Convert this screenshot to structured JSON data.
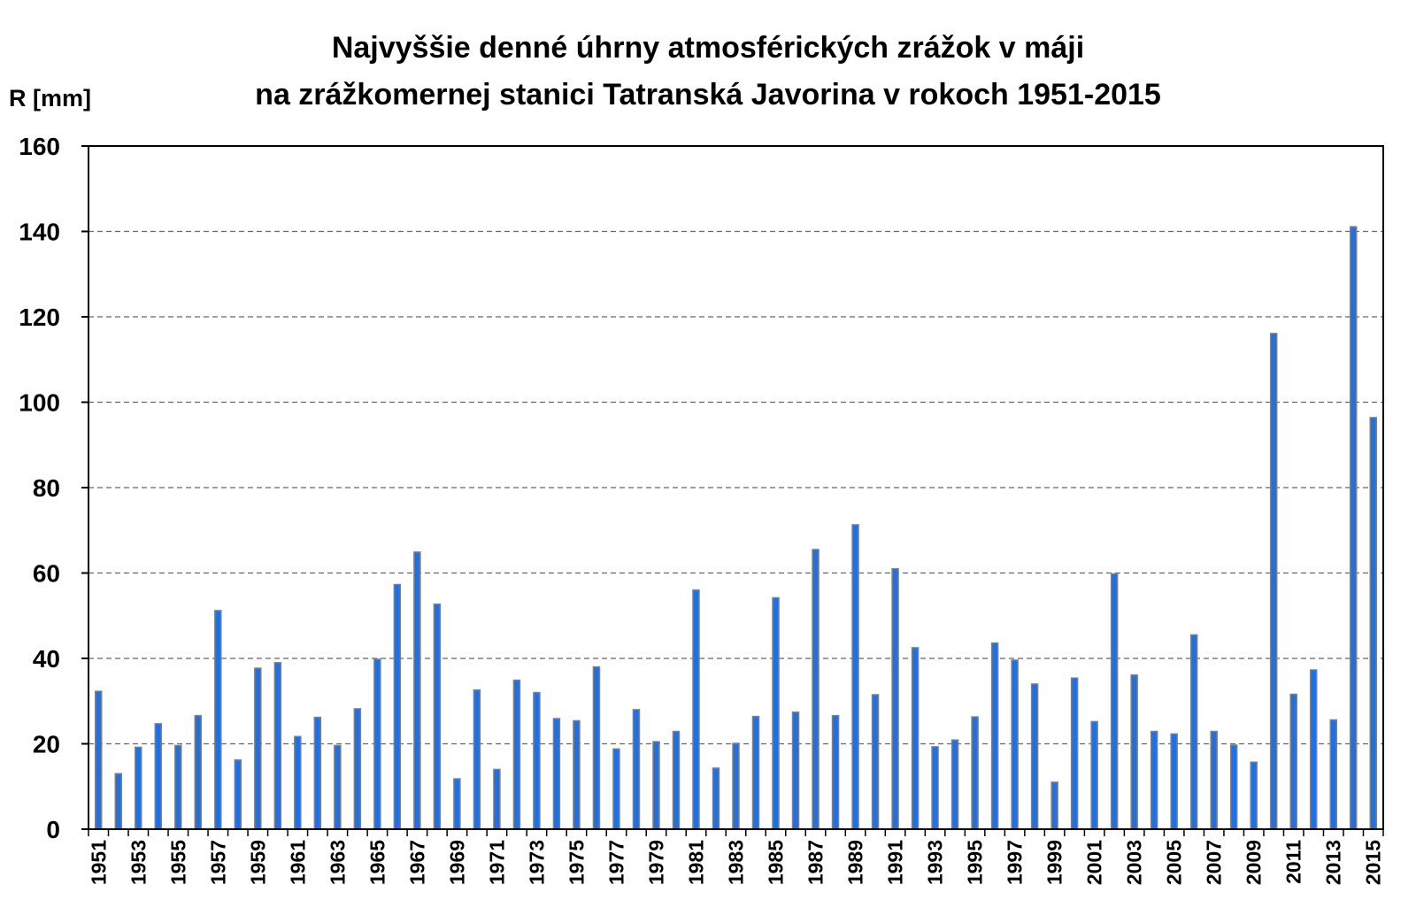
{
  "chart_data": {
    "type": "bar",
    "title": [
      "Najvyššie denné úhrny atmosférických zrážok v máji",
      "na zrážkomernej stanici Tatranská Javorina v rokoch 1951-2015"
    ],
    "ylabel": "R [mm]",
    "xlabel": "",
    "ylim": [
      0,
      160
    ],
    "yticks": [
      0,
      20,
      40,
      60,
      80,
      100,
      120,
      140,
      160
    ],
    "grid": "horizontal dashed",
    "bar_color": "#1f6fe5",
    "bar_edge_color": "#808080",
    "categories": [
      1951,
      1952,
      1953,
      1954,
      1955,
      1956,
      1957,
      1958,
      1959,
      1960,
      1961,
      1962,
      1963,
      1964,
      1965,
      1966,
      1967,
      1968,
      1969,
      1970,
      1971,
      1972,
      1973,
      1974,
      1975,
      1976,
      1977,
      1978,
      1979,
      1980,
      1981,
      1982,
      1983,
      1984,
      1985,
      1986,
      1987,
      1988,
      1989,
      1990,
      1991,
      1992,
      1993,
      1994,
      1995,
      1996,
      1997,
      1998,
      1999,
      2000,
      2001,
      2002,
      2003,
      2004,
      2005,
      2006,
      2007,
      2008,
      2009,
      2010,
      2011,
      2012,
      2013,
      2014,
      2015
    ],
    "xtick_labels": [
      "1951",
      "1953",
      "1955",
      "1957",
      "1959",
      "1961",
      "1963",
      "1965",
      "1967",
      "1969",
      "1971",
      "1973",
      "1975",
      "1977",
      "1979",
      "1981",
      "1983",
      "1985",
      "1987",
      "1989",
      "1991",
      "1993",
      "1995",
      "1997",
      "1999",
      "2001",
      "2003",
      "2005",
      "2007",
      "2009",
      "2011",
      "2013",
      "2015"
    ],
    "values": [
      32.3,
      13.0,
      19.2,
      24.7,
      19.6,
      26.6,
      51.2,
      16.2,
      37.7,
      39.0,
      21.7,
      26.2,
      19.6,
      28.2,
      39.8,
      57.3,
      64.9,
      52.7,
      11.8,
      32.6,
      14.0,
      34.9,
      32.0,
      25.9,
      25.4,
      38.0,
      18.8,
      28.0,
      20.5,
      22.9,
      56.0,
      14.3,
      20.1,
      26.4,
      54.2,
      27.4,
      65.5,
      26.6,
      71.3,
      31.5,
      61.0,
      42.5,
      19.3,
      20.9,
      26.3,
      43.6,
      39.6,
      34.0,
      11.0,
      35.4,
      25.2,
      59.8,
      36.1,
      22.9,
      22.3,
      45.5,
      22.9,
      19.7,
      15.7,
      116.1,
      31.6,
      37.3,
      25.6,
      141.1,
      96.4
    ]
  }
}
